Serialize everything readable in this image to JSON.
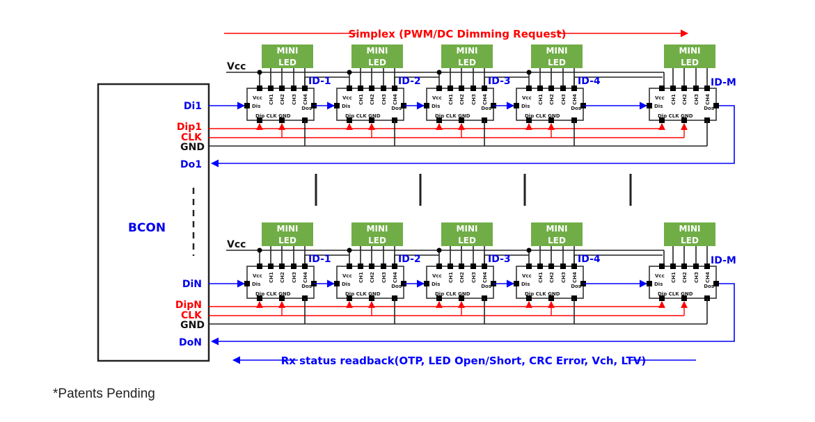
{
  "colors": {
    "signal_red": "#ff0000",
    "signal_blue": "#0000ff",
    "wire_black": "#222222",
    "led_green": "#70ad47",
    "label_blue": "#0000ee"
  },
  "top_arrow_label": "Simplex (PWM/DC Dimming Request)",
  "bottom_arrow_label": "Rx status readback(OTP, LED Open/Short, CRC Error, Vch, LTV)",
  "controller_label": "BCON",
  "note": "*Patents Pending",
  "led_label_line1": "MINI",
  "led_label_line2": "LED",
  "vcc_label": "Vcc",
  "chip_pins": {
    "vcc": "Vcc",
    "ch1": "CH1",
    "ch2": "CH2",
    "ch3": "CH3",
    "ch4": "CH4",
    "dis": "Dis",
    "dos": "Dos",
    "bottom": "Dip CLK GND"
  },
  "chip_ids": [
    "ID-1",
    "ID-2",
    "ID-3",
    "ID-4",
    "ID-M"
  ],
  "rows": [
    {
      "di": "Di1",
      "dip": "Dip1",
      "clk": "CLK",
      "gnd": "GND",
      "do": "Do1"
    },
    {
      "di": "DiN",
      "dip": "DipN",
      "clk": "CLK",
      "gnd": "GND",
      "do": "DoN"
    }
  ]
}
